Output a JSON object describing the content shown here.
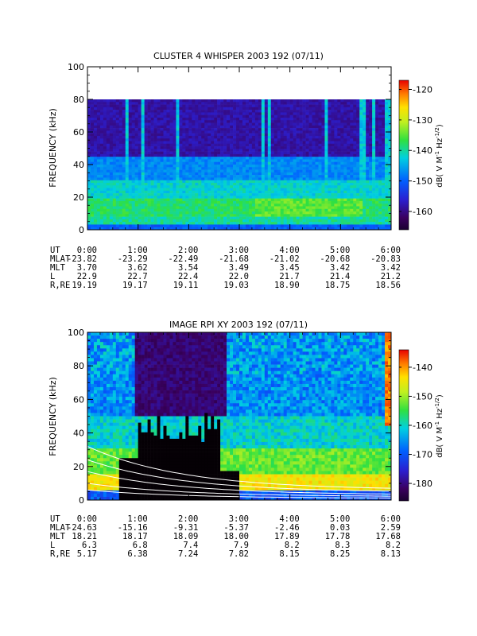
{
  "chart_data": [
    {
      "type": "heatmap",
      "title": "CLUSTER 4 WHISPER 2003 192 (07/11)",
      "ylabel": "FREQUENCY (kHz)",
      "yticks": [
        "0",
        "20",
        "40",
        "60",
        "80",
        "100"
      ],
      "ylim": [
        0,
        100
      ],
      "data_ylim": [
        0,
        80
      ],
      "xticks": [
        "0:00",
        "1:00",
        "2:00",
        "3:00",
        "4:00",
        "5:00",
        "6:00"
      ],
      "colorbar": {
        "label": "dB( V M⁻¹ Hz⁻¹ᐟ²)",
        "label_parts": {
          "base": "dB( V M",
          "exp1": "-1",
          "mid": " Hz",
          "exp2": "-1/2",
          "end": ")"
        },
        "ticks": [
          "-120",
          "-130",
          "-140",
          "-150",
          "-160"
        ],
        "range": [
          -166,
          -117
        ]
      },
      "ephemeris_labels": [
        "UT",
        "MLAT",
        "MLT",
        "L",
        "R,RE"
      ],
      "ephemeris": {
        "UT": [
          "0:00",
          "1:00",
          "2:00",
          "3:00",
          "4:00",
          "5:00",
          "6:00"
        ],
        "MLAT": [
          "-23.82",
          "-23.29",
          "-22.49",
          "-21.68",
          "-21.02",
          "-20.68",
          "-20.83"
        ],
        "MLT": [
          "3.70",
          "3.62",
          "3.54",
          "3.49",
          "3.45",
          "3.42",
          "3.42"
        ],
        "L": [
          "22.9",
          "22.7",
          "22.4",
          "22.0",
          "21.7",
          "21.4",
          "21.2"
        ],
        "R,RE": [
          "19.19",
          "19.17",
          "19.11",
          "19.03",
          "18.90",
          "18.75",
          "18.56"
        ]
      }
    },
    {
      "type": "heatmap",
      "title": "IMAGE RPI XY 2003 192 (07/11)",
      "ylabel": "FREQUENCY (kHz)",
      "yticks": [
        "0",
        "20",
        "40",
        "60",
        "80",
        "100"
      ],
      "ylim": [
        0,
        100
      ],
      "xticks": [
        "0:00",
        "1:00",
        "2:00",
        "3:00",
        "4:00",
        "5:00",
        "6:00"
      ],
      "colorbar": {
        "label_parts": {
          "base": "dB( V M",
          "exp1": "-1",
          "mid": " Hz",
          "exp2": "-1/2",
          "end": ")"
        },
        "ticks": [
          "-140",
          "-150",
          "-160",
          "-170",
          "-180"
        ],
        "range": [
          -186,
          -134
        ]
      },
      "ephemeris_labels": [
        "UT",
        "MLAT",
        "MLT",
        "L",
        "R,RE"
      ],
      "ephemeris": {
        "UT": [
          "0:00",
          "1:00",
          "2:00",
          "3:00",
          "4:00",
          "5:00",
          "6:00"
        ],
        "MLAT": [
          "-24.63",
          "-15.16",
          "-9.31",
          "-5.37",
          "-2.46",
          "0.03",
          "2.59"
        ],
        "MLT": [
          "18.21",
          "18.17",
          "18.09",
          "18.00",
          "17.89",
          "17.78",
          "17.68"
        ],
        "L": [
          "6.3",
          "6.8",
          "7.4",
          "7.9",
          "8.2",
          "8.3",
          "8.2"
        ],
        "R,RE": [
          "5.17",
          "6.38",
          "7.24",
          "7.82",
          "8.15",
          "8.25",
          "8.13"
        ]
      }
    }
  ]
}
